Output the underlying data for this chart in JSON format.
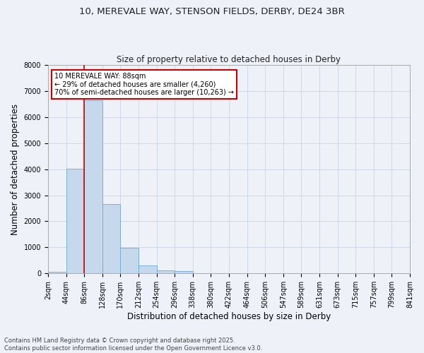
{
  "title1": "10, MEREVALE WAY, STENSON FIELDS, DERBY, DE24 3BR",
  "title2": "Size of property relative to detached houses in Derby",
  "xlabel": "Distribution of detached houses by size in Derby",
  "ylabel": "Number of detached properties",
  "bar_values": [
    50,
    4010,
    6650,
    2650,
    980,
    310,
    120,
    80,
    0,
    0,
    0,
    0,
    0,
    0,
    0,
    0,
    0,
    0,
    0,
    0
  ],
  "bar_labels": [
    "2sqm",
    "44sqm",
    "86sqm",
    "128sqm",
    "170sqm",
    "212sqm",
    "254sqm",
    "296sqm",
    "338sqm",
    "380sqm",
    "422sqm",
    "464sqm",
    "506sqm",
    "547sqm",
    "589sqm",
    "631sqm",
    "673sqm",
    "715sqm",
    "757sqm",
    "799sqm",
    "841sqm"
  ],
  "bar_color": "#c5d8ec",
  "bar_edge_color": "#6aaad4",
  "grid_color": "#d0d8e8",
  "bg_color": "#eef2f8",
  "vline_x": 2,
  "vline_color": "#cc0000",
  "annotation_text": "10 MEREVALE WAY: 88sqm\n← 29% of detached houses are smaller (4,260)\n70% of semi-detached houses are larger (10,263) →",
  "annotation_box_color": "#ffffff",
  "annotation_box_edge": "#cc0000",
  "ylim": [
    0,
    8000
  ],
  "yticks": [
    0,
    1000,
    2000,
    3000,
    4000,
    5000,
    6000,
    7000,
    8000
  ],
  "footnote": "Contains HM Land Registry data © Crown copyright and database right 2025.\nContains public sector information licensed under the Open Government Licence v3.0.",
  "title_fontsize": 9.5,
  "subtitle_fontsize": 8.5,
  "tick_fontsize": 7,
  "axis_label_fontsize": 8.5
}
